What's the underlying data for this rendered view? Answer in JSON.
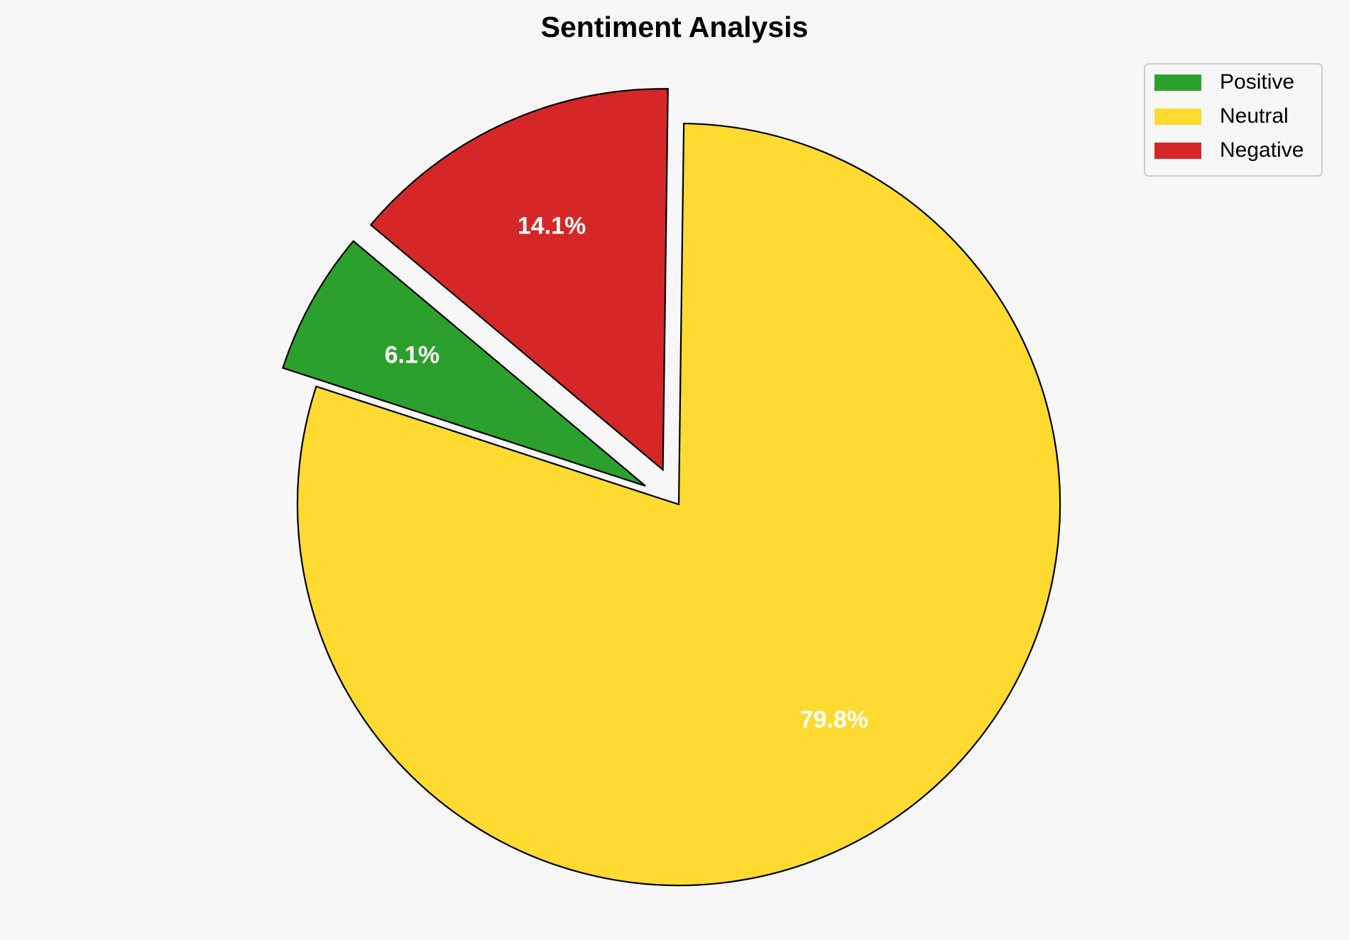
{
  "chart_data": {
    "type": "pie",
    "title": "Sentiment Analysis",
    "categories": [
      "Positive",
      "Neutral",
      "Negative"
    ],
    "values": [
      6.1,
      79.8,
      14.1
    ],
    "value_labels": [
      "6.1%",
      "79.8%",
      "14.1%"
    ],
    "colors": [
      "#2ca02c",
      "#ffda30",
      "#d62728"
    ],
    "explode": [
      0.1,
      0,
      0.1
    ],
    "startangle": 140,
    "legend": "upper right"
  }
}
